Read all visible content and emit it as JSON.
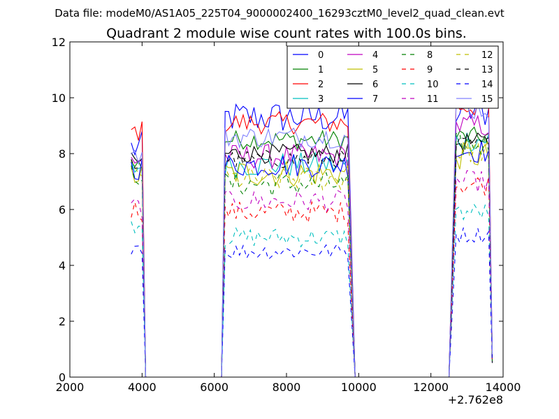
{
  "chart_data": {
    "type": "line",
    "suptitle": "Data file: modeM0/AS1A05_225T04_9000002400_16293cztM0_level2_quad_clean.evt",
    "title": "Quadrant 2 module wise count rates with 100.0s bins.",
    "xlabel": "",
    "ylabel": "",
    "xlim": [
      2000,
      14000
    ],
    "ylim": [
      0,
      12
    ],
    "x_ticks": [
      2000,
      4000,
      6000,
      8000,
      10000,
      12000,
      14000
    ],
    "x_tick_labels": [
      "2000",
      "4000",
      "6000",
      "8000",
      "10000",
      "12000",
      "14000"
    ],
    "y_ticks": [
      0,
      2,
      4,
      6,
      8,
      10,
      12
    ],
    "y_tick_labels": [
      "0",
      "2",
      "4",
      "6",
      "8",
      "10",
      "12"
    ],
    "x_offset_label": "+2.762e8",
    "legend": {
      "placement": "top-right",
      "columns": 4
    },
    "grid": false,
    "segments": [
      {
        "x_start": 3700,
        "x_end": 4000,
        "pre": [],
        "post": [
          4100
        ]
      },
      {
        "x_start": 6300,
        "x_end": 9700,
        "pre": [
          6200
        ],
        "post": [
          9900
        ]
      },
      {
        "x_start": 12700,
        "x_end": 13600,
        "pre": [
          12500
        ],
        "post": []
      }
    ],
    "zero_runs": [
      [
        4100,
        6200
      ],
      [
        9900,
        12500
      ]
    ],
    "series": [
      {
        "name": "0",
        "color": "#0000ff",
        "dash": "solid",
        "level": [
          8.2,
          9.3,
          9.5
        ],
        "noise": 0.6
      },
      {
        "name": "1",
        "color": "#008000",
        "dash": "solid",
        "level": [
          7.6,
          8.5,
          8.6
        ],
        "noise": 0.35
      },
      {
        "name": "2",
        "color": "#ff0000",
        "dash": "solid",
        "level": [
          8.8,
          9.1,
          9.7
        ],
        "noise": 0.4
      },
      {
        "name": "3",
        "color": "#00bfbf",
        "dash": "solid",
        "level": [
          7.5,
          7.6,
          8.5
        ],
        "noise": 0.45
      },
      {
        "name": "4",
        "color": "#bf00bf",
        "dash": "solid",
        "level": [
          7.8,
          7.9,
          9.0
        ],
        "noise": 0.45
      },
      {
        "name": "5",
        "color": "#bfbf00",
        "dash": "solid",
        "level": [
          7.2,
          7.3,
          7.9
        ],
        "noise": 0.5
      },
      {
        "name": "6",
        "color": "#000000",
        "dash": "solid",
        "level": [
          7.7,
          8.0,
          8.4
        ],
        "noise": 0.35
      },
      {
        "name": "7",
        "color": "#0000ff",
        "dash": "solid",
        "level": [
          7.5,
          7.6,
          8.1
        ],
        "noise": 0.45
      },
      {
        "name": "8",
        "color": "#008000",
        "dash": "dashed",
        "level": [
          7.3,
          6.9,
          8.3
        ],
        "noise": 0.45
      },
      {
        "name": "9",
        "color": "#ff0000",
        "dash": "dashed",
        "level": [
          6.0,
          5.9,
          6.9
        ],
        "noise": 0.4
      },
      {
        "name": "10",
        "color": "#00bfbf",
        "dash": "dashed",
        "level": [
          5.5,
          5.0,
          5.9
        ],
        "noise": 0.35
      },
      {
        "name": "11",
        "color": "#bf00bf",
        "dash": "dashed",
        "level": [
          6.1,
          6.3,
          7.0
        ],
        "noise": 0.4
      },
      {
        "name": "12",
        "color": "#bfbf00",
        "dash": "dashed",
        "level": [
          7.4,
          7.1,
          8.1
        ],
        "noise": 0.45
      },
      {
        "name": "13",
        "color": "#000000",
        "dash": "dashed",
        "level": [
          7.6,
          7.8,
          8.3
        ],
        "noise": 0.35
      },
      {
        "name": "14",
        "color": "#0000ff",
        "dash": "dashed",
        "level": [
          4.7,
          4.5,
          5.1
        ],
        "noise": 0.3
      },
      {
        "name": "15",
        "color": "#8080ff",
        "dash": "solid",
        "level": [
          7.9,
          8.6,
          9.6
        ],
        "noise": 0.4
      }
    ]
  }
}
